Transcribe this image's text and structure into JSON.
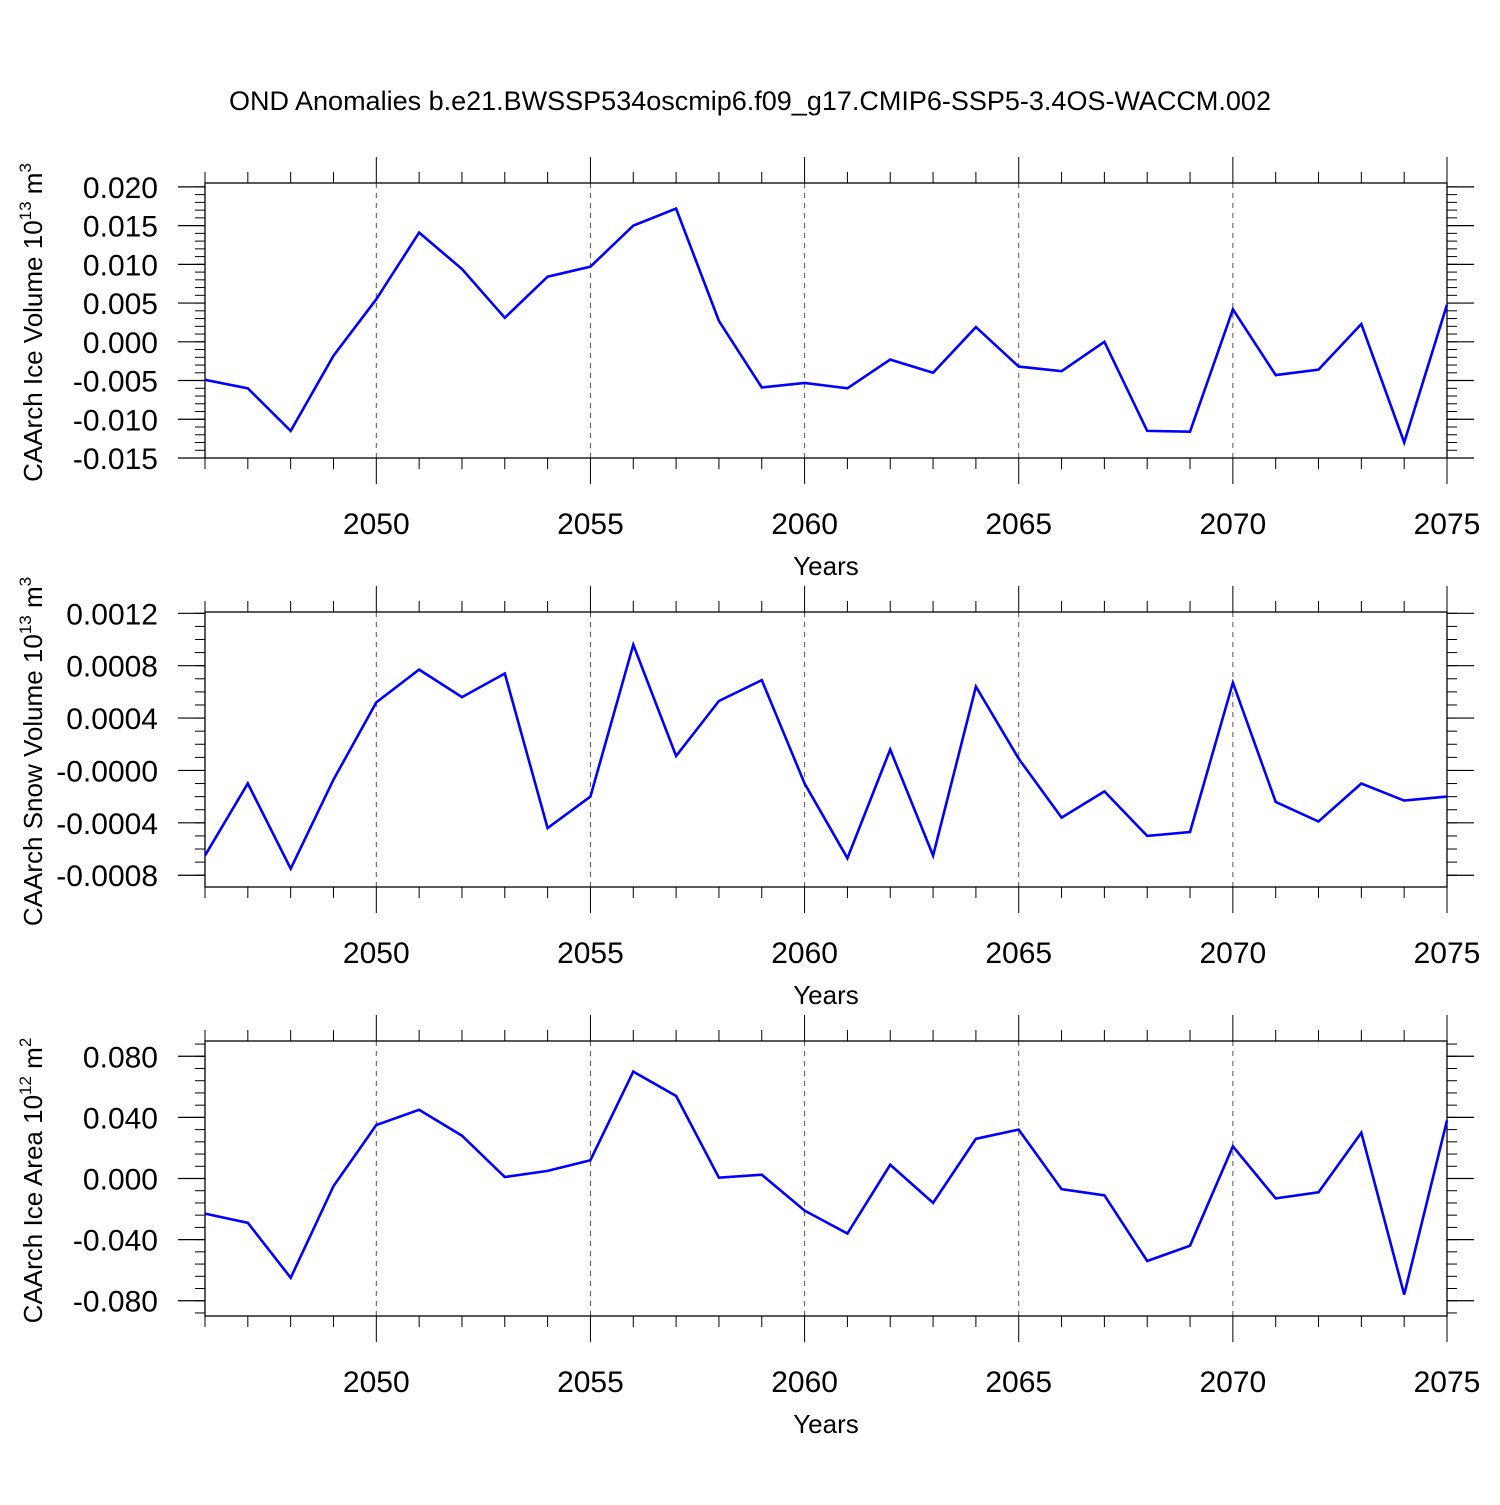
{
  "figure_title": "OND Anomalies b.e21.BWSSP534oscmip6.f09_g17.CMIP6-SSP5-3.4OS-WACCM.002",
  "colors": {
    "line": "#0000ff",
    "axis": "#000000",
    "grid": "#555555",
    "background": "#ffffff"
  },
  "chart_data": [
    {
      "type": "line",
      "title": "OND Anomalies b.e21.BWSSP534oscmip6.f09_g17.CMIP6-SSP5-3.4OS-WACCM.002",
      "xlabel": "Years",
      "ylabel": "CAArch Ice Volume 10",
      "ylabel_exp": "13",
      "ylabel_unit": " m",
      "ylabel_unit_exp": "3",
      "xlim": [
        2046,
        2075
      ],
      "ylim": [
        -0.015,
        0.0205
      ],
      "xticks": [
        2050,
        2055,
        2060,
        2065,
        2070,
        2075
      ],
      "xtick_labels": [
        "2050",
        "2055",
        "2060",
        "2065",
        "2070",
        "2075"
      ],
      "yticks": [
        -0.015,
        -0.01,
        -0.005,
        0.0,
        0.005,
        0.01,
        0.015,
        0.02
      ],
      "ytick_labels": [
        "-0.015",
        "-0.010",
        "-0.005",
        "0.000",
        "0.005",
        "0.010",
        "0.015",
        "0.020"
      ],
      "ymin_minor": 0.001,
      "grid": "dashed vertical at major x ticks",
      "x": [
        2046,
        2047,
        2048,
        2049,
        2050,
        2051,
        2052,
        2053,
        2054,
        2055,
        2056,
        2057,
        2058,
        2059,
        2060,
        2061,
        2062,
        2063,
        2064,
        2065,
        2066,
        2067,
        2068,
        2069,
        2070,
        2071,
        2072,
        2073,
        2074,
        2075
      ],
      "series": [
        {
          "name": "CAArch Ice Volume",
          "values": [
            -0.0049,
            -0.006,
            -0.0115,
            -0.0018,
            0.0055,
            0.0141,
            0.0094,
            0.0031,
            0.0084,
            0.0097,
            0.015,
            0.0172,
            0.0027,
            -0.0059,
            -0.0053,
            -0.006,
            -0.0023,
            -0.004,
            0.0019,
            -0.0032,
            -0.0038,
            0.0,
            -0.0115,
            -0.0116,
            0.0042,
            -0.0043,
            -0.0036,
            0.0023,
            -0.013,
            0.0048
          ]
        }
      ]
    },
    {
      "type": "line",
      "xlabel": "Years",
      "ylabel": "CAArch Snow Volume 10",
      "ylabel_exp": "13",
      "ylabel_unit": " m",
      "ylabel_unit_exp": "3",
      "xlim": [
        2046,
        2075
      ],
      "ylim": [
        -0.00089,
        0.00121
      ],
      "xticks": [
        2050,
        2055,
        2060,
        2065,
        2070,
        2075
      ],
      "xtick_labels": [
        "2050",
        "2055",
        "2060",
        "2065",
        "2070",
        "2075"
      ],
      "yticks": [
        -0.0008,
        -0.0004,
        0.0,
        0.0004,
        0.0008,
        0.0012
      ],
      "ytick_labels": [
        "-0.0008",
        "-0.0004",
        "-0.0000",
        "0.0004",
        "0.0008",
        "0.0012"
      ],
      "ymin_minor": 0.0001,
      "grid": "dashed vertical at major x ticks",
      "x": [
        2046,
        2047,
        2048,
        2049,
        2050,
        2051,
        2052,
        2053,
        2054,
        2055,
        2056,
        2057,
        2058,
        2059,
        2060,
        2061,
        2062,
        2063,
        2064,
        2065,
        2066,
        2067,
        2068,
        2069,
        2070,
        2071,
        2072,
        2073,
        2074,
        2075
      ],
      "series": [
        {
          "name": "CAArch Snow Volume",
          "values": [
            -0.00065,
            -0.0001,
            -0.00075,
            -7e-05,
            0.00052,
            0.00077,
            0.00056,
            0.00074,
            -0.00044,
            -0.0002,
            0.00096,
            0.00011,
            0.00053,
            0.00069,
            -0.0001,
            -0.00067,
            0.00016,
            -0.00065,
            0.00064,
            9e-05,
            -0.00036,
            -0.00016,
            -0.0005,
            -0.00047,
            0.00067,
            -0.00024,
            -0.00039,
            -0.0001,
            -0.00023,
            -0.0002
          ]
        }
      ]
    },
    {
      "type": "line",
      "xlabel": "Years",
      "ylabel": "CAArch Ice Area 10",
      "ylabel_exp": "12",
      "ylabel_unit": " m",
      "ylabel_unit_exp": "2",
      "xlim": [
        2046,
        2075
      ],
      "ylim": [
        -0.09,
        0.09
      ],
      "xticks": [
        2050,
        2055,
        2060,
        2065,
        2070,
        2075
      ],
      "xtick_labels": [
        "2050",
        "2055",
        "2060",
        "2065",
        "2070",
        "2075"
      ],
      "yticks": [
        -0.08,
        -0.04,
        0.0,
        0.04,
        0.08
      ],
      "ytick_labels": [
        "-0.080",
        "-0.040",
        "0.000",
        "0.040",
        "0.080"
      ],
      "ymin_minor": 0.008,
      "grid": "dashed vertical at major x ticks",
      "x": [
        2046,
        2047,
        2048,
        2049,
        2050,
        2051,
        2052,
        2053,
        2054,
        2055,
        2056,
        2057,
        2058,
        2059,
        2060,
        2061,
        2062,
        2063,
        2064,
        2065,
        2066,
        2067,
        2068,
        2069,
        2070,
        2071,
        2072,
        2073,
        2074,
        2075
      ],
      "series": [
        {
          "name": "CAArch Ice Area",
          "values": [
            -0.023,
            -0.029,
            -0.065,
            -0.005,
            0.035,
            0.045,
            0.028,
            0.001,
            0.005,
            0.012,
            0.07,
            0.054,
            0.0005,
            0.0025,
            -0.021,
            -0.036,
            0.009,
            -0.016,
            0.026,
            0.032,
            -0.007,
            -0.011,
            -0.054,
            -0.044,
            0.021,
            -0.013,
            -0.009,
            0.03,
            -0.076,
            0.038
          ]
        }
      ]
    }
  ]
}
